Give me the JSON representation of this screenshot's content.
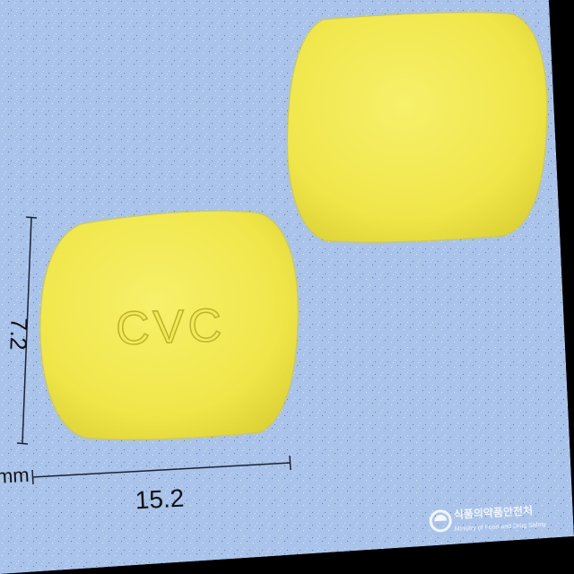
{
  "photo": {
    "background_color": "#a9c3ea",
    "border_color": "#000000",
    "pill_color": "#f2ea4f",
    "pill_shadow_color": "#d9cf3a"
  },
  "tablets": {
    "front": {
      "imprint": "CVC"
    },
    "back": {
      "imprint": ""
    }
  },
  "dimensions": {
    "height_value": "7.2",
    "width_value": "15.2",
    "unit": "mm"
  },
  "watermark": {
    "korean_text": "식품의약품안전처",
    "english_text": "Ministry of Food and Drug Safety",
    "logo_icon": "mfds-logo-icon"
  }
}
